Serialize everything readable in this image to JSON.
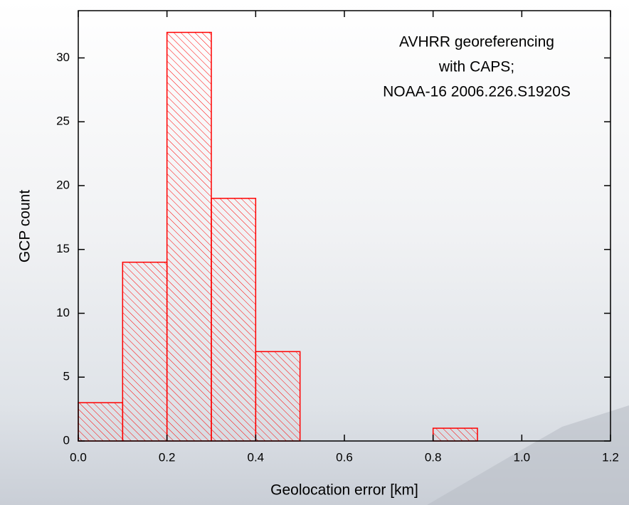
{
  "chart_data": {
    "type": "histogram",
    "annotation": [
      "AVHRR georeferencing",
      "with CAPS;",
      "NOAA-16 2006.226.S1920S"
    ],
    "x_label": "Geolocation error [km]",
    "y_label": "GCP count",
    "bins": [
      0,
      0.1,
      0.2,
      0.3,
      0.4,
      0.5,
      0.6,
      0.7,
      0.8,
      0.9,
      1.0,
      1.1,
      1.2
    ],
    "values": [
      3,
      14,
      32,
      19,
      7,
      0,
      0,
      0,
      1,
      0,
      0,
      0
    ],
    "color": "#ff0000",
    "xlim": [
      0,
      1.2
    ],
    "ylim": [
      0,
      33.7
    ],
    "xticks": [
      {
        "value": 0,
        "label": "0.0"
      },
      0.2,
      0.4,
      0.6,
      0.8,
      {
        "value": 1,
        "label": "1.0"
      },
      1.2
    ],
    "yticks": [
      0,
      5,
      10,
      15,
      20,
      25,
      30
    ]
  }
}
